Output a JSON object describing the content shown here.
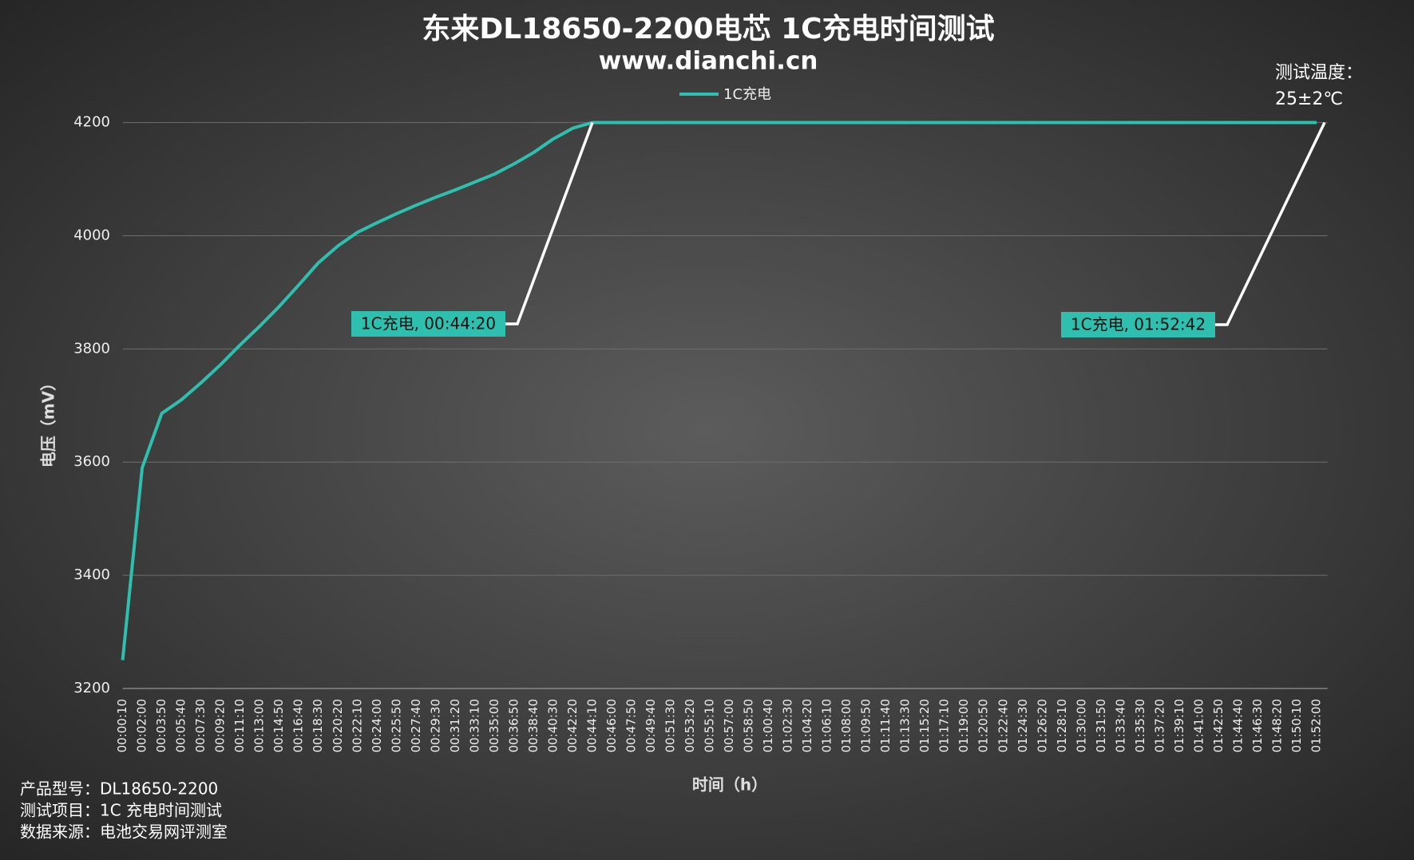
{
  "chart_data": {
    "type": "line",
    "title": "东来DL18650-2200电芯 1C充电时间测试",
    "subtitle": "www.dianchi.cn",
    "y_label": "电压（mV）",
    "x_label": "时间（h）",
    "temperature_note": [
      "测试温度：",
      "25±2℃"
    ],
    "footer_notes": [
      "产品型号：DL18650-2200",
      "测试项目：1C 充电时间测试",
      "数据来源：电池交易网评测室"
    ],
    "annotations": [
      "1C充电, 00:44:20",
      "1C充电, 01:52:42"
    ],
    "categories": [
      "00:00:10",
      "00:02:00",
      "00:03:50",
      "00:05:40",
      "00:07:30",
      "00:09:20",
      "00:11:10",
      "00:13:00",
      "00:14:50",
      "00:16:40",
      "00:18:30",
      "00:20:20",
      "00:22:10",
      "00:24:00",
      "00:25:50",
      "00:27:40",
      "00:29:30",
      "00:31:20",
      "00:33:10",
      "00:35:00",
      "00:36:50",
      "00:38:40",
      "00:40:30",
      "00:42:20",
      "00:44:10",
      "00:46:00",
      "00:47:50",
      "00:49:40",
      "00:51:30",
      "00:53:20",
      "00:55:10",
      "00:57:00",
      "00:58:50",
      "01:00:40",
      "01:02:30",
      "01:04:20",
      "01:06:10",
      "01:08:00",
      "01:09:50",
      "01:11:40",
      "01:13:30",
      "01:15:20",
      "01:17:10",
      "01:19:00",
      "01:20:50",
      "01:22:40",
      "01:24:30",
      "01:26:20",
      "01:28:10",
      "01:30:00",
      "01:31:50",
      "01:33:40",
      "01:35:30",
      "01:37:20",
      "01:39:10",
      "01:41:00",
      "01:42:50",
      "01:44:40",
      "01:46:30",
      "01:48:20",
      "01:50:10",
      "01:52:00"
    ],
    "series": [
      {
        "name": "1C充电",
        "color": "#2ebfae",
        "values": [
          3250,
          3590,
          3686,
          3710,
          3740,
          3772,
          3807,
          3840,
          3875,
          3913,
          3952,
          3982,
          4006,
          4023,
          4039,
          4054,
          4068,
          4081,
          4095,
          4109,
          4127,
          4147,
          4171,
          4190,
          4200,
          4200,
          4200,
          4200,
          4200,
          4200,
          4200,
          4200,
          4200,
          4200,
          4200,
          4200,
          4200,
          4200,
          4200,
          4200,
          4200,
          4200,
          4200,
          4200,
          4200,
          4200,
          4200,
          4200,
          4200,
          4200,
          4200,
          4200,
          4200,
          4200,
          4200,
          4200,
          4200,
          4200,
          4200,
          4200,
          4200,
          4200
        ]
      }
    ],
    "ylim": [
      3200,
      4200
    ],
    "yticks": [
      3200,
      3400,
      3600,
      3800,
      4000,
      4200
    ],
    "grid": true
  }
}
